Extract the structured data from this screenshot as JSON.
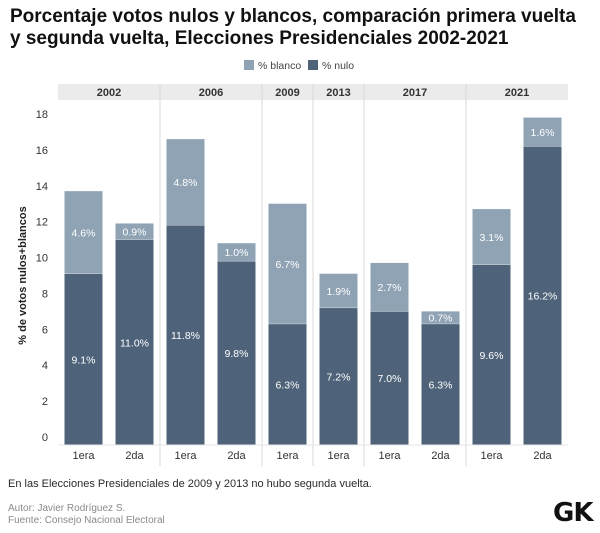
{
  "title": "Porcentaje votos nulos y blancos, comparación primera vuelta y segunda vuelta, Elecciones Presidenciales 2002-2021",
  "note": "En las Elecciones Presidenciales de 2009 y 2013 no hubo segunda vuelta.",
  "author": "Autor: Javier Rodríguez S.",
  "source": "Fuente: Consejo Nacional Electoral",
  "logo": "GK",
  "chart_data": {
    "type": "bar",
    "stacked": true,
    "title": "Porcentaje votos nulos y blancos, comparación primera vuelta y segunda vuelta, Elecciones Presidenciales 2002-2021",
    "ylabel": "% de votos nulos+blancos",
    "xlabel": "",
    "ylim": [
      0,
      18
    ],
    "yticks": [
      0,
      2,
      4,
      6,
      8,
      10,
      12,
      14,
      16,
      18
    ],
    "legend": [
      {
        "name": "% blanco",
        "color": "#8fa3b5"
      },
      {
        "name": "% nulo",
        "color": "#4e6379"
      }
    ],
    "groups": [
      {
        "year": "2002",
        "bars": [
          {
            "round": "1era",
            "nulo": 9.1,
            "nulo_label": "9.1%",
            "blanco": 4.6,
            "blanco_label": "4.6%"
          },
          {
            "round": "2da",
            "nulo": 11.0,
            "nulo_label": "11.0%",
            "blanco": 0.9,
            "blanco_label": "0.9%"
          }
        ]
      },
      {
        "year": "2006",
        "bars": [
          {
            "round": "1era",
            "nulo": 11.8,
            "nulo_label": "11.8%",
            "blanco": 4.8,
            "blanco_label": "4.8%"
          },
          {
            "round": "2da",
            "nulo": 9.8,
            "nulo_label": "9.8%",
            "blanco": 1.0,
            "blanco_label": "1.0%"
          }
        ]
      },
      {
        "year": "2009",
        "bars": [
          {
            "round": "1era",
            "nulo": 6.3,
            "nulo_label": "6.3%",
            "blanco": 6.7,
            "blanco_label": "6.7%"
          }
        ]
      },
      {
        "year": "2013",
        "bars": [
          {
            "round": "1era",
            "nulo": 7.2,
            "nulo_label": "7.2%",
            "blanco": 1.9,
            "blanco_label": "1.9%"
          }
        ]
      },
      {
        "year": "2017",
        "bars": [
          {
            "round": "1era",
            "nulo": 7.0,
            "nulo_label": "7.0%",
            "blanco": 2.7,
            "blanco_label": "2.7%"
          },
          {
            "round": "2da",
            "nulo": 6.3,
            "nulo_label": "6.3%",
            "blanco": 0.7,
            "blanco_label": "0.7%"
          }
        ]
      },
      {
        "year": "2021",
        "bars": [
          {
            "round": "1era",
            "nulo": 9.6,
            "nulo_label": "9.6%",
            "blanco": 3.1,
            "blanco_label": "3.1%"
          },
          {
            "round": "2da",
            "nulo": 16.2,
            "nulo_label": "16.2%",
            "blanco": 1.6,
            "blanco_label": "1.6%"
          }
        ]
      }
    ]
  }
}
